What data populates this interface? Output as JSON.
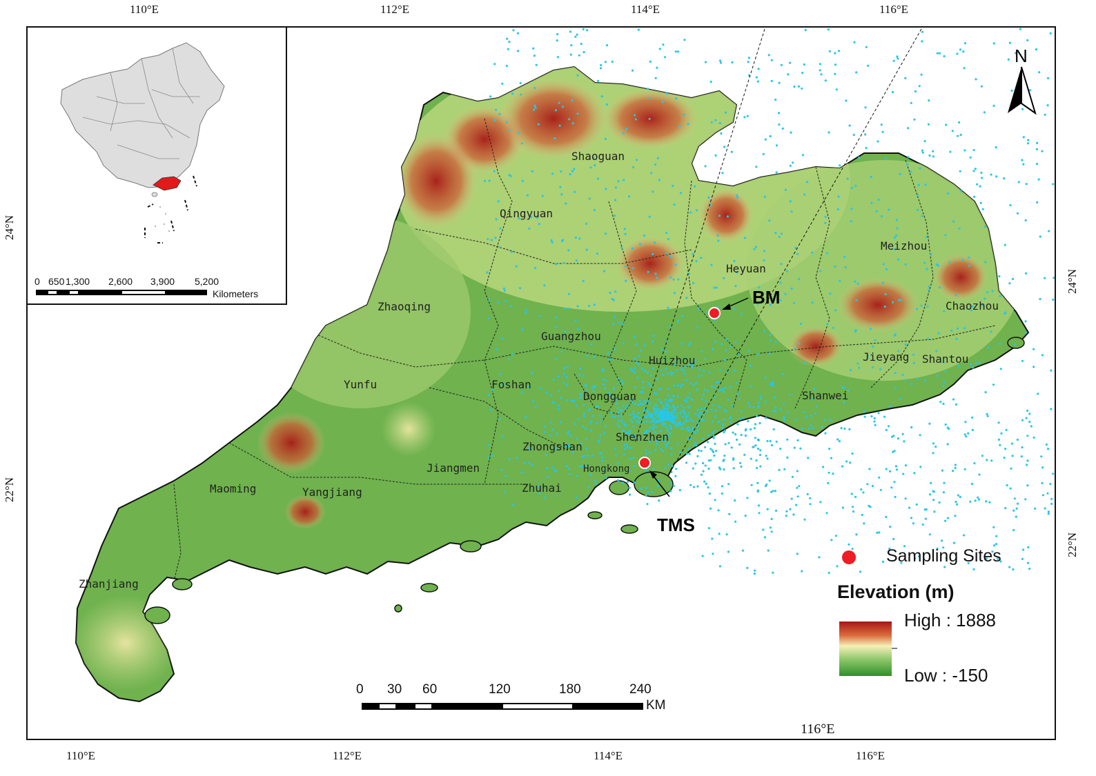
{
  "frame": {
    "top_ticks": [
      "110°E",
      "112°E",
      "114°E",
      "116°E"
    ],
    "bottom_ticks": [
      "110°E",
      "112°E",
      "114°E",
      "116°E"
    ],
    "bottom_extra": "116°E",
    "left_ticks": [
      "24°N",
      "22°N"
    ],
    "right_ticks": [
      "24°N",
      "22°N"
    ]
  },
  "cities": [
    {
      "name": "Shaoguan"
    },
    {
      "name": "Qingyuan"
    },
    {
      "name": "Heyuan"
    },
    {
      "name": "Meizhou"
    },
    {
      "name": "Chaozhou"
    },
    {
      "name": "Zhaoqing"
    },
    {
      "name": "Guangzhou"
    },
    {
      "name": "Huizhou"
    },
    {
      "name": "Jieyang"
    },
    {
      "name": "Shantou"
    },
    {
      "name": "Yunfu"
    },
    {
      "name": "Foshan"
    },
    {
      "name": "Dongguan"
    },
    {
      "name": "Shanwei"
    },
    {
      "name": "Shenzhen"
    },
    {
      "name": "Zhongshan"
    },
    {
      "name": "Hongkong"
    },
    {
      "name": "Jiangmen"
    },
    {
      "name": "Maoming"
    },
    {
      "name": "Yangjiang"
    },
    {
      "name": "Zhuhai"
    },
    {
      "name": "Zhanjiang"
    }
  ],
  "sites": [
    {
      "label": "BM"
    },
    {
      "label": "TMS"
    }
  ],
  "north_arrow": {
    "label": "N"
  },
  "legend": {
    "sampling_sites": "Sampling Sites",
    "elevation_title": "Elevation (m)",
    "high": "High : 1888",
    "low": "Low : -150",
    "colors": {
      "high": "#b01818",
      "mid": "#f4f0b8",
      "low": "#3f9a2e",
      "site": "#ee1c24",
      "points": "#29c6e6"
    }
  },
  "scale_bar": {
    "labels": [
      "0",
      "30",
      "60",
      "120",
      "180",
      "240"
    ],
    "unit": "KM"
  },
  "inset": {
    "scale_labels": [
      "0",
      "650",
      "1,300",
      "2,600",
      "3,900",
      "5,200"
    ],
    "unit": "Kilometers"
  }
}
